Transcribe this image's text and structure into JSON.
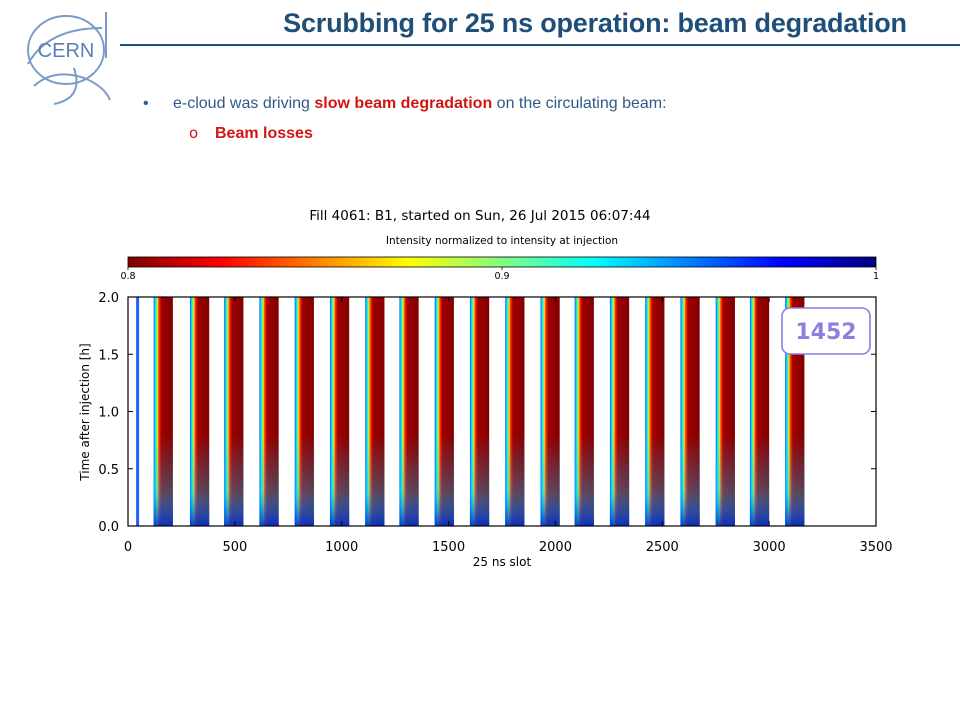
{
  "slide": {
    "title": "Scrubbing for 25 ns operation: beam degradation",
    "bullet1": {
      "prefix": "e-cloud was driving ",
      "highlight": "slow beam degradation",
      "suffix": " on the circulating beam:"
    },
    "subbullet1": "Beam losses",
    "logo_text": "CERN"
  },
  "colors": {
    "title": "#1f4e79",
    "highlight": "#d11515",
    "bullet": "#2e5a88",
    "badge": "#8d7fe0"
  },
  "chart_data": {
    "type": "heatmap",
    "title": "Fill 4061: B1, started on Sun, 26 Jul 2015 06:07:44",
    "colorbar": {
      "label": "Intensity normalized to intensity at injection",
      "min": 0.8,
      "max": 1.0,
      "ticks": [
        "0.8",
        "0.9",
        "1"
      ],
      "colormap": "jet_reversed"
    },
    "xlabel": "25 ns slot",
    "ylabel": "Time after injection [h]",
    "xlim": [
      0,
      3500
    ],
    "ylim": [
      0.0,
      2.0
    ],
    "xticks": [
      "0",
      "500",
      "1000",
      "1500",
      "2000",
      "2500",
      "3000",
      "3500"
    ],
    "yticks": [
      "0.0",
      "0.5",
      "1.0",
      "1.5",
      "2.0"
    ],
    "annotation": "1452",
    "pilot_bunch_slot": 45,
    "trains": [
      {
        "start": 120,
        "end": 210
      },
      {
        "start": 290,
        "end": 380
      },
      {
        "start": 450,
        "end": 540
      },
      {
        "start": 615,
        "end": 705
      },
      {
        "start": 780,
        "end": 870
      },
      {
        "start": 945,
        "end": 1035
      },
      {
        "start": 1110,
        "end": 1200
      },
      {
        "start": 1270,
        "end": 1360
      },
      {
        "start": 1435,
        "end": 1525
      },
      {
        "start": 1600,
        "end": 1690
      },
      {
        "start": 1765,
        "end": 1855
      },
      {
        "start": 1930,
        "end": 2020
      },
      {
        "start": 2090,
        "end": 2180
      },
      {
        "start": 2255,
        "end": 2345
      },
      {
        "start": 2420,
        "end": 2510
      },
      {
        "start": 2585,
        "end": 2675
      },
      {
        "start": 2750,
        "end": 2840
      },
      {
        "start": 2910,
        "end": 3000
      },
      {
        "start": 3075,
        "end": 3165
      }
    ]
  }
}
